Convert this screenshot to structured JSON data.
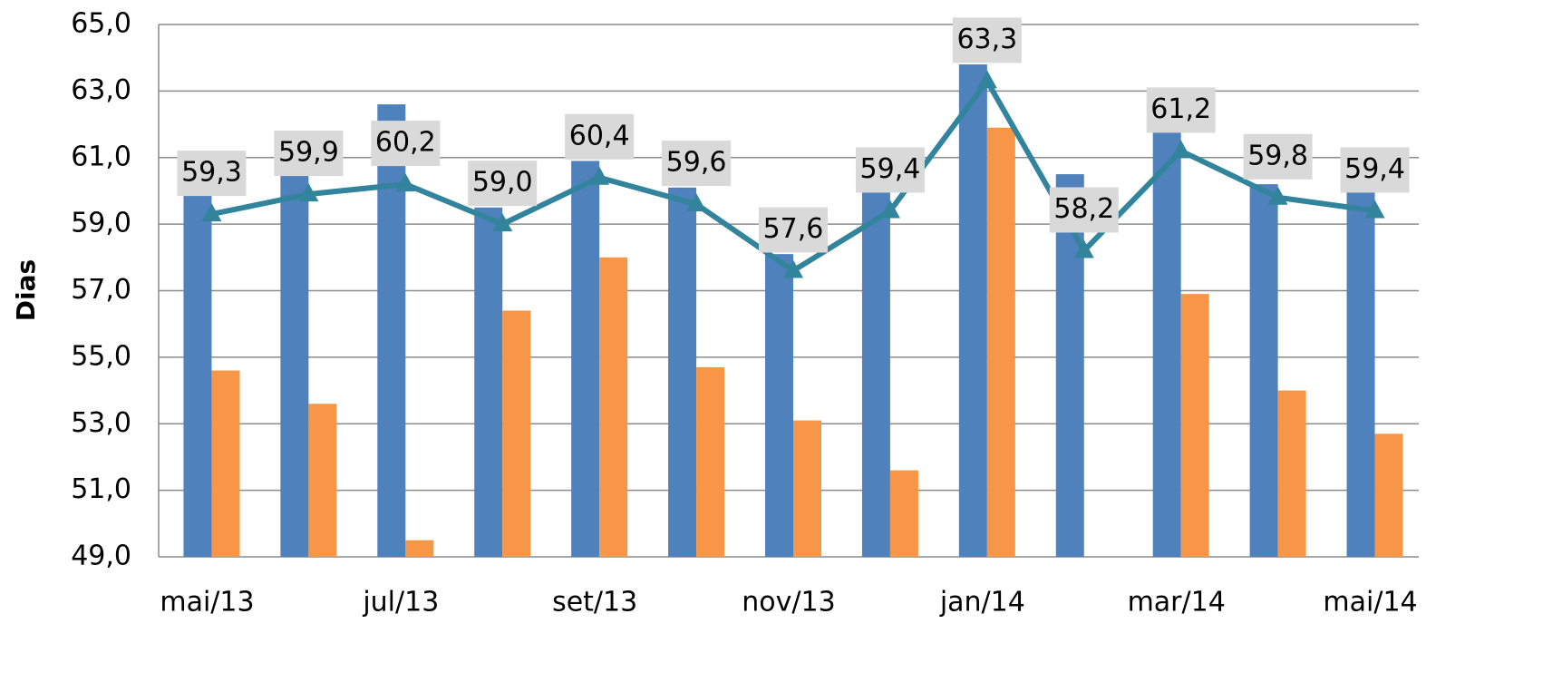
{
  "chart_data": {
    "type": "bar-line",
    "y_label": "Dias",
    "categories": [
      "mai/13",
      null,
      "jul/13",
      null,
      "set/13",
      null,
      "nov/13",
      null,
      "jan/14",
      null,
      "mar/14",
      null,
      "mai/14"
    ],
    "ylim": [
      49,
      65
    ],
    "yticks": [
      {
        "value": 49,
        "label": "49,0"
      },
      {
        "value": 51,
        "label": "51,0"
      },
      {
        "value": 53,
        "label": "53,0"
      },
      {
        "value": 55,
        "label": "55,0"
      },
      {
        "value": 57,
        "label": "57,0"
      },
      {
        "value": 59,
        "label": "59,0"
      },
      {
        "value": 61,
        "label": "61,0"
      },
      {
        "value": 63,
        "label": "63,0"
      },
      {
        "value": 65,
        "label": "65,0"
      }
    ],
    "grid": true,
    "series": [
      {
        "type": "bar",
        "color": "#4f81bd",
        "values": [
          59.9,
          60.5,
          62.6,
          59.5,
          60.9,
          60.1,
          58.1,
          60.0,
          63.8,
          60.5,
          61.8,
          60.2,
          60.0
        ]
      },
      {
        "type": "bar",
        "color": "#f79646",
        "values": [
          54.6,
          53.6,
          49.5,
          56.4,
          58.0,
          54.7,
          53.1,
          51.6,
          61.9,
          null,
          56.9,
          54.0,
          52.7
        ]
      },
      {
        "type": "line",
        "color": "#31849b",
        "values": [
          59.3,
          59.9,
          60.2,
          59.0,
          60.4,
          59.6,
          57.6,
          59.4,
          63.3,
          58.2,
          61.2,
          59.8,
          59.4
        ],
        "value_labels": [
          "59,3",
          "59,9",
          "60,2",
          "59,0",
          "60,4",
          "59,6",
          "57,6",
          "59,4",
          "63,3",
          "58,2",
          "61,2",
          "59,8",
          "59,4"
        ]
      }
    ]
  }
}
